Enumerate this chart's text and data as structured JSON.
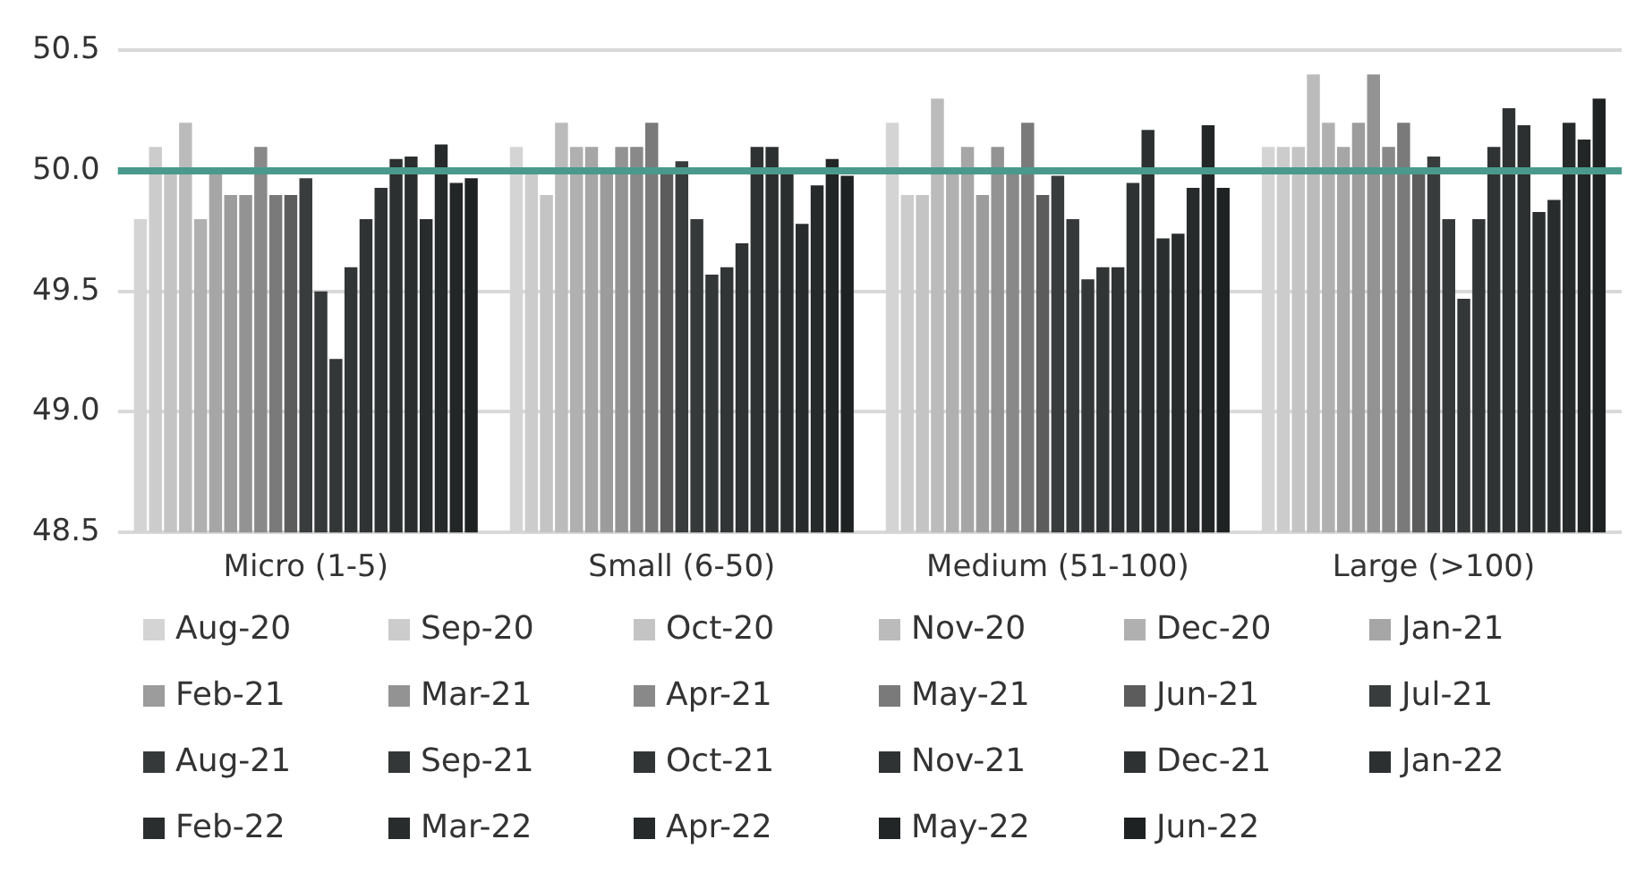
{
  "chart_data": {
    "type": "bar",
    "categories": [
      "Micro (1-5)",
      "Small (6-50)",
      "Medium (51-100)",
      "Large (>100)"
    ],
    "series": [
      {
        "name": "Aug-20",
        "color": "#d4d4d4",
        "values": [
          49.8,
          50.1,
          50.2,
          50.1
        ]
      },
      {
        "name": "Sep-20",
        "color": "#cccccc",
        "values": [
          50.1,
          50.0,
          49.9,
          50.1
        ]
      },
      {
        "name": "Oct-20",
        "color": "#c4c4c4",
        "values": [
          50.0,
          49.9,
          49.9,
          50.1
        ]
      },
      {
        "name": "Nov-20",
        "color": "#bbbbbb",
        "values": [
          50.2,
          50.2,
          50.3,
          50.4
        ]
      },
      {
        "name": "Dec-20",
        "color": "#b0b0b0",
        "values": [
          49.8,
          50.1,
          50.0,
          50.2
        ]
      },
      {
        "name": "Jan-21",
        "color": "#a6a6a6",
        "values": [
          50.0,
          50.1,
          50.1,
          50.1
        ]
      },
      {
        "name": "Feb-21",
        "color": "#9c9c9c",
        "values": [
          49.9,
          50.0,
          49.9,
          50.2
        ]
      },
      {
        "name": "Mar-21",
        "color": "#939393",
        "values": [
          49.9,
          50.1,
          50.1,
          50.4
        ]
      },
      {
        "name": "Apr-21",
        "color": "#898989",
        "values": [
          50.1,
          50.1,
          50.0,
          50.1
        ]
      },
      {
        "name": "May-21",
        "color": "#7a7a7a",
        "values": [
          49.9,
          50.2,
          50.2,
          50.2
        ]
      },
      {
        "name": "Jun-21",
        "color": "#5c5c5c",
        "values": [
          49.9,
          50.0,
          49.9,
          50.0
        ]
      },
      {
        "name": "Jul-21",
        "color": "#383c3c",
        "values": [
          49.97,
          50.04,
          49.98,
          50.06
        ]
      },
      {
        "name": "Aug-21",
        "color": "#353939",
        "values": [
          49.5,
          49.8,
          49.8,
          49.8
        ]
      },
      {
        "name": "Sep-21",
        "color": "#333737",
        "values": [
          49.22,
          49.57,
          49.55,
          49.47
        ]
      },
      {
        "name": "Oct-21",
        "color": "#313535",
        "values": [
          49.6,
          49.6,
          49.6,
          49.8
        ]
      },
      {
        "name": "Nov-21",
        "color": "#2f3333",
        "values": [
          49.8,
          49.7,
          49.6,
          50.1
        ]
      },
      {
        "name": "Dec-21",
        "color": "#2e3232",
        "values": [
          49.93,
          50.1,
          49.95,
          50.26
        ]
      },
      {
        "name": "Jan-22",
        "color": "#2c3030",
        "values": [
          50.05,
          50.1,
          50.17,
          50.19
        ]
      },
      {
        "name": "Feb-22",
        "color": "#2a2e2e",
        "values": [
          50.06,
          50.0,
          49.72,
          49.83
        ]
      },
      {
        "name": "Mar-22",
        "color": "#282c2c",
        "values": [
          49.8,
          49.78,
          49.74,
          49.88
        ]
      },
      {
        "name": "Apr-22",
        "color": "#262a2a",
        "values": [
          50.11,
          49.94,
          49.93,
          50.2
        ]
      },
      {
        "name": "May-22",
        "color": "#232626",
        "values": [
          49.95,
          50.05,
          50.19,
          50.13
        ]
      },
      {
        "name": "Jun-22",
        "color": "#1f2222",
        "values": [
          49.97,
          49.98,
          49.93,
          50.3
        ]
      }
    ],
    "ylim": [
      48.5,
      50.5
    ],
    "yticks": [
      48.5,
      {
        "value": 49,
        "label": "49.0"
      },
      49.5,
      {
        "value": 50,
        "label": "50.0"
      },
      50.5
    ],
    "ref_lines": [
      {
        "axis": "y",
        "value": 50,
        "color": "#4a9a8c"
      }
    ],
    "grid": "y",
    "legend": "bottom"
  }
}
